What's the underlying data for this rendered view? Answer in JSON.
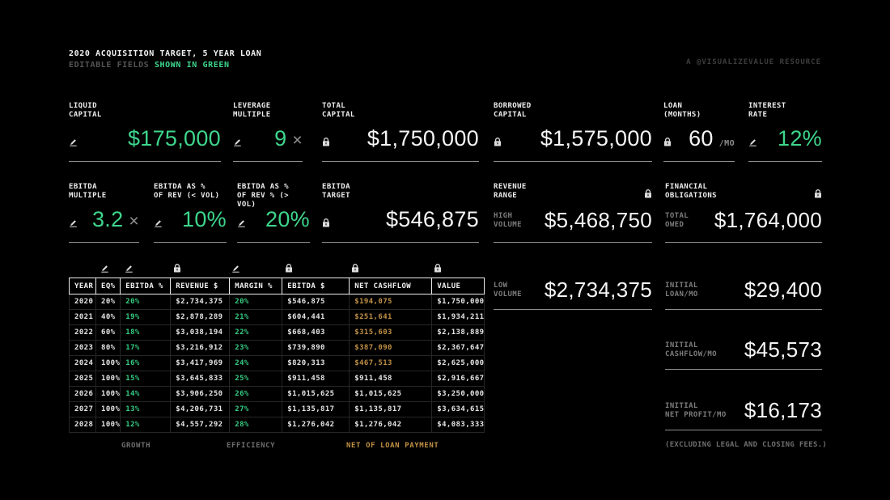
{
  "header": {
    "title": "2020 ACQUISITION TARGET, 5 YEAR LOAN",
    "subtitle_gray": "EDITABLE FIELDS ",
    "subtitle_green": "SHOWN IN GREEN",
    "credit": "A @VISUALIZEVALUE RESOURCE"
  },
  "colors": {
    "green": "#3ed68c",
    "orange": "#c09045",
    "background": "#000000"
  },
  "fields": {
    "liquid_capital": {
      "label": "LIQUID\nCAPITAL",
      "value": "$175,000",
      "editable": true
    },
    "leverage_multiple": {
      "label": "LEVERAGE\nMULTIPLE",
      "value": "9",
      "suffix": "×",
      "editable": true
    },
    "total_capital": {
      "label": "TOTAL\nCAPITAL",
      "value": "$1,750,000",
      "editable": false
    },
    "borrowed_capital": {
      "label": "BORROWED\nCAPITAL",
      "value": "$1,575,000",
      "editable": false
    },
    "loan_months": {
      "label": "LOAN\n(MONTHS)",
      "value": "60",
      "suffix": "/MO",
      "editable": false
    },
    "interest_rate": {
      "label": "INTEREST\nRATE",
      "value": "12%",
      "editable": true
    },
    "ebitda_multiple": {
      "label": "EBITDA\nMULTIPLE",
      "value": "3.2",
      "suffix": "×",
      "editable": true
    },
    "ebitda_rev_low": {
      "label": "EBITDA AS %\nOF REV (< VOL)",
      "value": "10%",
      "editable": true
    },
    "ebitda_rev_high": {
      "label": "EBITDA AS  %\nOF REV % (> VOL)",
      "value": "20%",
      "editable": true
    },
    "ebitda_target": {
      "label": "EBITDA\nTARGET",
      "value": "$546,875",
      "editable": false
    }
  },
  "stats": {
    "revenue_range": {
      "label": "REVENUE\nRANGE",
      "locked": true
    },
    "high_volume": {
      "label": "HIGH\nVOLUME",
      "value": "$5,468,750"
    },
    "low_volume": {
      "label": "LOW\nVOLUME",
      "value": "$2,734,375"
    },
    "financial_obligations": {
      "label": "FINANCIAL\nOBLIGATIONS",
      "locked": true
    },
    "total_owed": {
      "label": "TOTAL\nOWED",
      "value": "$1,764,000"
    },
    "initial_loan": {
      "label": "INITIAL\nLOAN/MO",
      "value": "$29,400"
    },
    "initial_cashflow": {
      "label": "INITIAL\nCASHFLOW/MO",
      "value": "$45,573"
    },
    "initial_net_profit": {
      "label": "INITIAL\nNET PROFIT/MO",
      "value": "$16,173"
    },
    "footnote": "(EXCLUDING LEGAL AND CLOSING FEES.)"
  },
  "table": {
    "headers": [
      "YEAR",
      "EQ%",
      "EBITDA %",
      "REVENUE $",
      "MARGIN %",
      "EBITDA $",
      "NET CASHFLOW",
      "VALUE"
    ],
    "column_icons": [
      null,
      "pencil",
      "pencil",
      "lock",
      "pencil",
      "lock",
      "lock",
      "lock"
    ],
    "col_classes": [
      "c-white",
      "c-white",
      "c-green",
      "c-white",
      "c-green",
      "c-white",
      "",
      "c-white"
    ],
    "col_editable": [
      false,
      true,
      true,
      false,
      true,
      false,
      false,
      false
    ],
    "rows": [
      {
        "cells": [
          "2020",
          "20%",
          "20%",
          "$2,734,375",
          "20%",
          "$546,875",
          "$194,075",
          "$1,750,000"
        ],
        "cashflow_color": "c-orange"
      },
      {
        "cells": [
          "2021",
          "40%",
          "19%",
          "$2,878,289",
          "21%",
          "$604,441",
          "$251,641",
          "$1,934,211"
        ],
        "cashflow_color": "c-orange"
      },
      {
        "cells": [
          "2022",
          "60%",
          "18%",
          "$3,038,194",
          "22%",
          "$668,403",
          "$315,603",
          "$2,138,889"
        ],
        "cashflow_color": "c-orange"
      },
      {
        "cells": [
          "2023",
          "80%",
          "17%",
          "$3,216,912",
          "23%",
          "$739,890",
          "$387,090",
          "$2,367,647"
        ],
        "cashflow_color": "c-orange"
      },
      {
        "cells": [
          "2024",
          "100%",
          "16%",
          "$3,417,969",
          "24%",
          "$820,313",
          "$467,513",
          "$2,625,000"
        ],
        "cashflow_color": "c-orange"
      },
      {
        "cells": [
          "2025",
          "100%",
          "15%",
          "$3,645,833",
          "25%",
          "$911,458",
          "$911,458",
          "$2,916,667"
        ],
        "cashflow_color": "c-white"
      },
      {
        "cells": [
          "2026",
          "100%",
          "14%",
          "$3,906,250",
          "26%",
          "$1,015,625",
          "$1,015,625",
          "$3,250,000"
        ],
        "cashflow_color": "c-white"
      },
      {
        "cells": [
          "2027",
          "100%",
          "13%",
          "$4,206,731",
          "27%",
          "$1,135,817",
          "$1,135,817",
          "$3,634,615"
        ],
        "cashflow_color": "c-white"
      },
      {
        "cells": [
          "2028",
          "100%",
          "12%",
          "$4,557,292",
          "28%",
          "$1,276,042",
          "$1,276,042",
          "$4,083,333"
        ],
        "cashflow_color": "c-white"
      }
    ],
    "footer_labels": {
      "growth": "GROWTH",
      "efficiency": "EFFICIENCY",
      "net_of_loan": "NET OF LOAN PAYMENT"
    }
  }
}
